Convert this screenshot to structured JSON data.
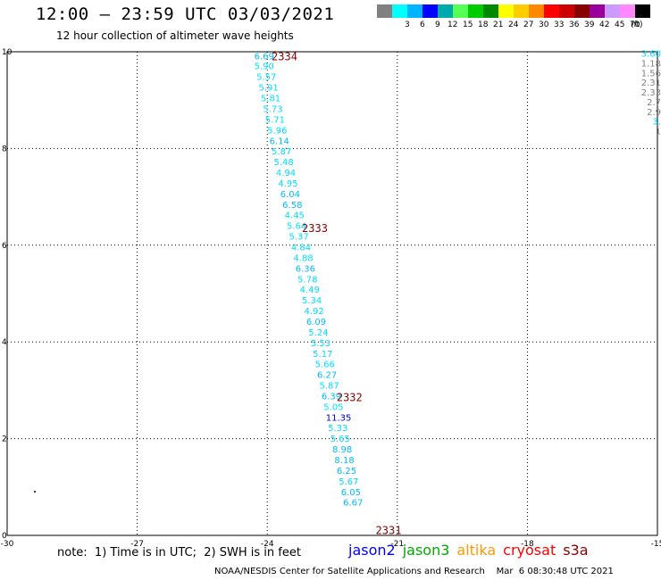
{
  "title": "12:00 – 23:59 UTC 03/03/2021",
  "subtitle": "12 hour collection of altimeter wave heights",
  "legend": {
    "unit": "(ft)",
    "items": [
      {
        "label": "",
        "color": "#808080"
      },
      {
        "label": "3",
        "color": "#00ffff"
      },
      {
        "label": "6",
        "color": "#00b4ff"
      },
      {
        "label": "9",
        "color": "#0000ff"
      },
      {
        "label": "12",
        "color": "#00aaaa"
      },
      {
        "label": "15",
        "color": "#55ff55"
      },
      {
        "label": "18",
        "color": "#00cc00"
      },
      {
        "label": "21",
        "color": "#008800"
      },
      {
        "label": "24",
        "color": "#ffff00"
      },
      {
        "label": "27",
        "color": "#ffcc00"
      },
      {
        "label": "30",
        "color": "#ff8800"
      },
      {
        "label": "33",
        "color": "#ff0000"
      },
      {
        "label": "36",
        "color": "#cc0000"
      },
      {
        "label": "39",
        "color": "#880000"
      },
      {
        "label": "42",
        "color": "#990099"
      },
      {
        "label": "45",
        "color": "#cc99ff"
      },
      {
        "label": "70",
        "color": "#ff88ff"
      },
      {
        "label": "",
        "color": "#000000"
      }
    ]
  },
  "axes": {
    "x_ticks": [
      "-30",
      "-27",
      "-24",
      "-21",
      "-18",
      "-15"
    ],
    "y_ticks": [
      "0",
      "2",
      "4",
      "6",
      "8",
      "10"
    ],
    "xlim": [
      -30,
      -15
    ],
    "ylim": [
      0,
      10
    ]
  },
  "chart_data": {
    "type": "scatter",
    "xlim": [
      -30,
      -15
    ],
    "ylim": [
      0,
      10
    ],
    "track": {
      "points": [
        {
          "x": -24.3,
          "y": 9.9,
          "v": "6.69",
          "c": "#00bbff"
        },
        {
          "x": -24.3,
          "y": 9.7,
          "v": "5.90",
          "c": "#00ddff"
        },
        {
          "x": -24.25,
          "y": 9.47,
          "v": "5.57",
          "c": "#00ddff"
        },
        {
          "x": -24.2,
          "y": 9.25,
          "v": "5.91",
          "c": "#00ddff"
        },
        {
          "x": -24.15,
          "y": 9.03,
          "v": "5.81",
          "c": "#00ddff"
        },
        {
          "x": -24.1,
          "y": 8.81,
          "v": "5.73",
          "c": "#00ddff"
        },
        {
          "x": -24.05,
          "y": 8.59,
          "v": "5.71",
          "c": "#00ddff"
        },
        {
          "x": -24.0,
          "y": 8.37,
          "v": "5.96",
          "c": "#00ddff"
        },
        {
          "x": -23.95,
          "y": 8.15,
          "v": "6.14",
          "c": "#00bbff"
        },
        {
          "x": -23.9,
          "y": 7.93,
          "v": "5.87",
          "c": "#00ddff"
        },
        {
          "x": -23.85,
          "y": 7.71,
          "v": "5.48",
          "c": "#00ddff"
        },
        {
          "x": -23.8,
          "y": 7.49,
          "v": "4.94",
          "c": "#00ddff"
        },
        {
          "x": -23.75,
          "y": 7.27,
          "v": "4.95",
          "c": "#00ddff"
        },
        {
          "x": -23.7,
          "y": 7.05,
          "v": "6.04",
          "c": "#00bbff"
        },
        {
          "x": -23.65,
          "y": 6.83,
          "v": "6.58",
          "c": "#00bbff"
        },
        {
          "x": -23.6,
          "y": 6.61,
          "v": "4.45",
          "c": "#00ddff"
        },
        {
          "x": -23.55,
          "y": 6.39,
          "v": "5.64",
          "c": "#00ddff"
        },
        {
          "x": -23.5,
          "y": 6.17,
          "v": "5.37",
          "c": "#00ddff"
        },
        {
          "x": -23.45,
          "y": 5.95,
          "v": "4.84",
          "c": "#00ddff"
        },
        {
          "x": -23.4,
          "y": 5.73,
          "v": "4.88",
          "c": "#00ddff"
        },
        {
          "x": -23.35,
          "y": 5.51,
          "v": "6.36",
          "c": "#00bbff"
        },
        {
          "x": -23.3,
          "y": 5.29,
          "v": "5.78",
          "c": "#00ddff"
        },
        {
          "x": -23.25,
          "y": 5.07,
          "v": "4.49",
          "c": "#00ddff"
        },
        {
          "x": -23.2,
          "y": 4.85,
          "v": "5.34",
          "c": "#00ddff"
        },
        {
          "x": -23.15,
          "y": 4.63,
          "v": "4.92",
          "c": "#00ddff"
        },
        {
          "x": -23.1,
          "y": 4.41,
          "v": "6.09",
          "c": "#00bbff"
        },
        {
          "x": -23.05,
          "y": 4.19,
          "v": "5.24",
          "c": "#00ddff"
        },
        {
          "x": -23.0,
          "y": 3.97,
          "v": "5.53",
          "c": "#00ddff"
        },
        {
          "x": -22.95,
          "y": 3.75,
          "v": "5.17",
          "c": "#00ddff"
        },
        {
          "x": -22.9,
          "y": 3.53,
          "v": "5.66",
          "c": "#00ddff"
        },
        {
          "x": -22.85,
          "y": 3.31,
          "v": "6.27",
          "c": "#00bbff"
        },
        {
          "x": -22.8,
          "y": 3.09,
          "v": "5.87",
          "c": "#00ddff"
        },
        {
          "x": -22.75,
          "y": 2.87,
          "v": "6.39",
          "c": "#00bbff"
        },
        {
          "x": -22.7,
          "y": 2.65,
          "v": "5.05",
          "c": "#00ddff"
        },
        {
          "x": -22.65,
          "y": 2.43,
          "v": "11.35",
          "c": "#0000cc"
        },
        {
          "x": -22.6,
          "y": 2.21,
          "v": "5.33",
          "c": "#00ddff"
        },
        {
          "x": -22.55,
          "y": 1.99,
          "v": "5.65",
          "c": "#00ddff"
        },
        {
          "x": -22.5,
          "y": 1.77,
          "v": "8.98",
          "c": "#00bbff"
        },
        {
          "x": -22.45,
          "y": 1.55,
          "v": "8.18",
          "c": "#00bbff"
        },
        {
          "x": -22.4,
          "y": 1.33,
          "v": "6.25",
          "c": "#00bbff"
        },
        {
          "x": -22.35,
          "y": 1.11,
          "v": "5.67",
          "c": "#00ddff"
        },
        {
          "x": -22.3,
          "y": 0.89,
          "v": "6.05",
          "c": "#00bbff"
        },
        {
          "x": -22.25,
          "y": 0.67,
          "v": "6.67",
          "c": "#00bbff"
        }
      ]
    },
    "pass_labels": [
      {
        "x": -23.9,
        "y": 9.9,
        "label": "2334"
      },
      {
        "x": -23.2,
        "y": 6.35,
        "label": "2333"
      },
      {
        "x": -22.4,
        "y": 2.85,
        "label": "2332"
      },
      {
        "x": -21.5,
        "y": 0.1,
        "label": "2331"
      }
    ],
    "edge_track": [
      {
        "x": -15.1,
        "y": 9.95,
        "v": "3.60",
        "c": "#00ddff"
      },
      {
        "x": -15.1,
        "y": 9.75,
        "v": "1.18",
        "c": "#808080"
      },
      {
        "x": -15.1,
        "y": 9.55,
        "v": "1.56",
        "c": "#808080"
      },
      {
        "x": -15.1,
        "y": 9.35,
        "v": "2.31",
        "c": "#808080"
      },
      {
        "x": -15.1,
        "y": 9.15,
        "v": "2.33",
        "c": "#808080"
      },
      {
        "x": -15.1,
        "y": 8.95,
        "v": "2.7",
        "c": "#808080"
      },
      {
        "x": -15.1,
        "y": 8.75,
        "v": "2.9",
        "c": "#808080"
      },
      {
        "x": -15.1,
        "y": 8.55,
        "v": "3.",
        "c": "#00ddff"
      },
      {
        "x": -15.1,
        "y": 8.35,
        "v": "1",
        "c": "#808080"
      }
    ]
  },
  "note": "note:  1) Time is in UTC;  2) SWH is in feet",
  "satellites": [
    {
      "name": "jason2",
      "color": "#0000ff"
    },
    {
      "name": "jason3",
      "color": "#00aa00"
    },
    {
      "name": "altika",
      "color": "#ff9900"
    },
    {
      "name": "cryosat",
      "color": "#ff0000"
    },
    {
      "name": "s3a",
      "color": "#880000"
    }
  ],
  "credit": "NOAA/NESDIS Center for Satellite Applications and Research    Mar  6 08:30:48 UTC 2021"
}
